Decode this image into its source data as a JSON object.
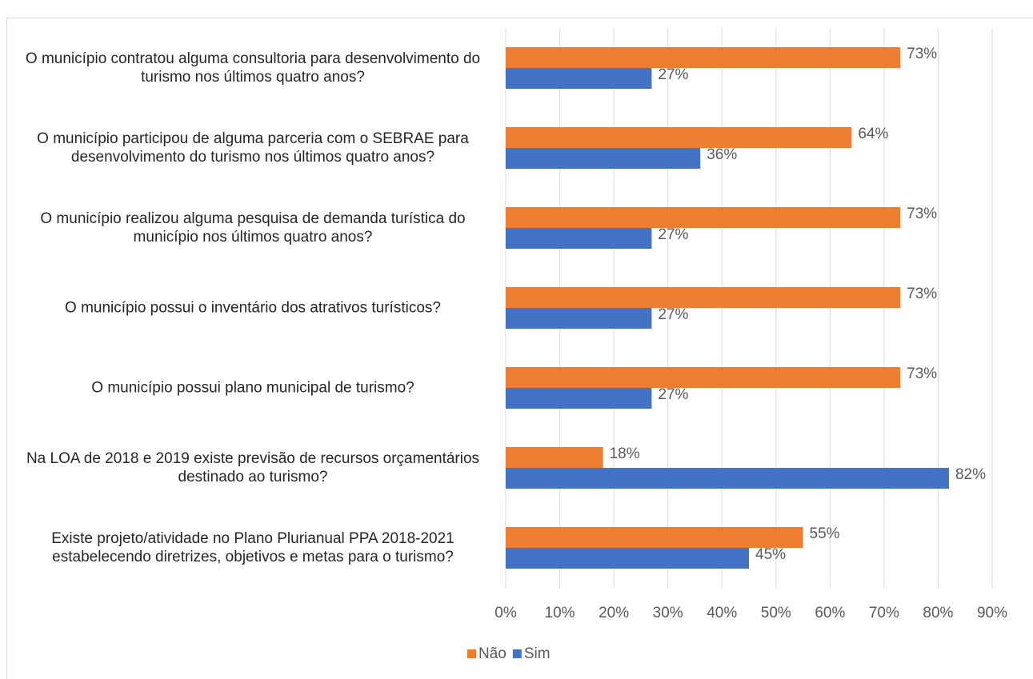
{
  "chart_data": {
    "type": "hbar",
    "categories": [
      "O município contratou alguma consultoria para desenvolvimento do turismo nos últimos quatro anos?",
      "O município participou de alguma parceria com o SEBRAE para desenvolvimento do turismo nos últimos quatro anos?",
      "O município  realizou alguma pesquisa de demanda turística do município nos últimos quatro anos?",
      "O município possui o inventário dos atrativos turísticos?",
      "O município possui plano municipal de turismo?",
      "Na LOA de 2018 e 2019 existe previsão de recursos orçamentários destinado ao turismo?",
      "Existe projeto/atividade no Plano Plurianual PPA 2018-2021 estabelecendo diretrizes, objetivos e metas para o turismo?"
    ],
    "series": [
      {
        "name": "Não",
        "color": "#ed7d31",
        "values": [
          73,
          64,
          73,
          73,
          73,
          18,
          55
        ],
        "value_labels": [
          "73%",
          "64%",
          "73%",
          "73%",
          "73%",
          "18%",
          "55%"
        ]
      },
      {
        "name": "Sim",
        "color": "#4472c4",
        "values": [
          27,
          36,
          27,
          27,
          27,
          82,
          45
        ],
        "value_labels": [
          "27%",
          "36%",
          "27%",
          "27%",
          "27%",
          "82%",
          "45%"
        ]
      }
    ],
    "xlim": [
      0,
      90
    ],
    "xticks": [
      {
        "value": 0,
        "label": "0%"
      },
      {
        "value": 10,
        "label": "10%"
      },
      {
        "value": 20,
        "label": "20%"
      },
      {
        "value": 30,
        "label": "30%"
      },
      {
        "value": 40,
        "label": "40%"
      },
      {
        "value": 50,
        "label": "50%"
      },
      {
        "value": 60,
        "label": "60%"
      },
      {
        "value": 70,
        "label": "70%"
      },
      {
        "value": 80,
        "label": "80%"
      },
      {
        "value": 90,
        "label": "90%"
      }
    ],
    "grid": true,
    "legend": "bottom"
  }
}
